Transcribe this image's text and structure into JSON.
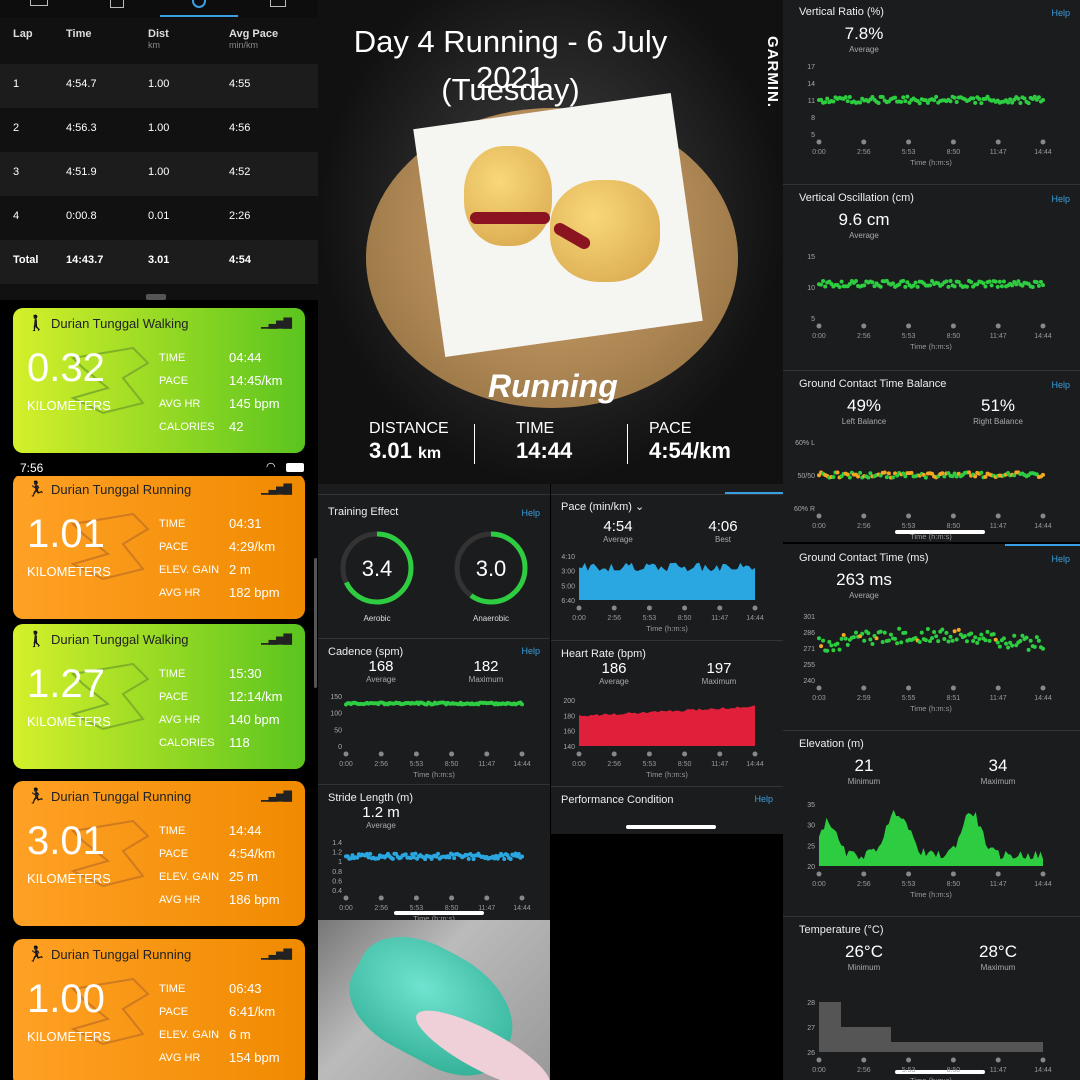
{
  "laps": {
    "headers": [
      {
        "label": "Lap",
        "unit": ""
      },
      {
        "label": "Time",
        "unit": ""
      },
      {
        "label": "Dist",
        "unit": "km"
      },
      {
        "label": "Avg Pace",
        "unit": "min/km"
      }
    ],
    "rows": [
      {
        "lap": "1",
        "time": "4:54.7",
        "dist": "1.00",
        "pace": "4:55"
      },
      {
        "lap": "2",
        "time": "4:56.3",
        "dist": "1.00",
        "pace": "4:56"
      },
      {
        "lap": "3",
        "time": "4:51.9",
        "dist": "1.00",
        "pace": "4:52"
      },
      {
        "lap": "4",
        "time": "0:00.8",
        "dist": "0.01",
        "pace": "2:26"
      }
    ],
    "total": {
      "lap": "Total",
      "time": "14:43.7",
      "dist": "3.01",
      "pace": "4:54"
    }
  },
  "status_time": "7:56",
  "cards": [
    {
      "kind": "walk",
      "title": "Durian Tunggal Walking",
      "distance": "0.32",
      "unit": "KILOMETERS",
      "stats": [
        [
          "TIME",
          "04:44"
        ],
        [
          "PACE",
          "14:45/km"
        ],
        [
          "AVG HR",
          "145 bpm"
        ],
        [
          "CALORIES",
          "42"
        ]
      ]
    },
    {
      "kind": "run",
      "title": "Durian Tunggal Running",
      "distance": "1.01",
      "unit": "KILOMETERS",
      "stats": [
        [
          "TIME",
          "04:31"
        ],
        [
          "PACE",
          "4:29/km"
        ],
        [
          "ELEV. GAIN",
          "2 m"
        ],
        [
          "AVG HR",
          "182 bpm"
        ]
      ]
    },
    {
      "kind": "walk",
      "title": "Durian Tunggal Walking",
      "distance": "1.27",
      "unit": "KILOMETERS",
      "stats": [
        [
          "TIME",
          "15:30"
        ],
        [
          "PACE",
          "12:14/km"
        ],
        [
          "AVG HR",
          "140 bpm"
        ],
        [
          "CALORIES",
          "118"
        ]
      ]
    },
    {
      "kind": "run",
      "title": "Durian Tunggal Running",
      "distance": "3.01",
      "unit": "KILOMETERS",
      "stats": [
        [
          "TIME",
          "14:44"
        ],
        [
          "PACE",
          "4:54/km"
        ],
        [
          "ELEV. GAIN",
          "25 m"
        ],
        [
          "AVG HR",
          "186 bpm"
        ]
      ]
    },
    {
      "kind": "run",
      "title": "Durian Tunggal Running",
      "distance": "1.00",
      "unit": "KILOMETERS",
      "stats": [
        [
          "TIME",
          "06:43"
        ],
        [
          "PACE",
          "6:41/km"
        ],
        [
          "ELEV. GAIN",
          "6 m"
        ],
        [
          "AVG HR",
          "154 bpm"
        ]
      ]
    }
  ],
  "photo": {
    "title_line1": "Day 4 Running - 6 July 2021",
    "title_line2": "(Tuesday)",
    "brand": "GARMIN.",
    "activity": "Running",
    "stats": [
      {
        "label": "DISTANCE",
        "value": "3.01",
        "unit": "km"
      },
      {
        "label": "TIME",
        "value": "14:44",
        "unit": ""
      },
      {
        "label": "PACE",
        "value": "4:54/km",
        "unit": ""
      }
    ]
  },
  "help": "Help",
  "x_time_label": "Time (h:m:s)",
  "x_ticks": [
    "0:00",
    "2:56",
    "5:53",
    "8:50",
    "11:47",
    "14:44"
  ],
  "training": {
    "title": "Training Effect",
    "aerobic": "3.4",
    "aerobic_label": "Aerobic",
    "anaerobic": "3.0",
    "anaerobic_label": "Anaerobic"
  },
  "cadence": {
    "title": "Cadence (spm)",
    "avg": "168",
    "avg_label": "Average",
    "max": "182",
    "max_label": "Maximum",
    "yticks": [
      "150",
      "100",
      "50",
      "0"
    ]
  },
  "stride": {
    "title": "Stride Length (m)",
    "avg": "1.2 m",
    "avg_label": "Average",
    "yticks": [
      "1.4",
      "1.2",
      "1",
      "0.8",
      "0.6",
      "0.4"
    ]
  },
  "pace": {
    "title": "Pace (min/km)",
    "avg": "4:54",
    "avg_label": "Average",
    "best": "4:06",
    "best_label": "Best",
    "yticks": [
      "4:10",
      "3:00",
      "5:00",
      "6:40"
    ]
  },
  "heart": {
    "title": "Heart Rate (bpm)",
    "avg": "186",
    "avg_label": "Average",
    "max": "197",
    "max_label": "Maximum",
    "yticks": [
      "200",
      "180",
      "160",
      "140"
    ]
  },
  "perf": {
    "title": "Performance Condition"
  },
  "vratio": {
    "title": "Vertical Ratio (%)",
    "avg": "7.8%",
    "avg_label": "Average",
    "yticks": [
      "17",
      "14",
      "11",
      "8",
      "5"
    ]
  },
  "vosc": {
    "title": "Vertical Oscillation (cm)",
    "avg": "9.6 cm",
    "avg_label": "Average",
    "yticks": [
      "15",
      "10",
      "5"
    ]
  },
  "gctb": {
    "title": "Ground Contact Time Balance",
    "left": "49%",
    "left_label": "Left Balance",
    "right": "51%",
    "right_label": "Right Balance",
    "yticks": [
      "60% L",
      "50/50",
      "60% R"
    ]
  },
  "gct": {
    "title": "Ground Contact Time (ms)",
    "avg": "263 ms",
    "avg_label": "Average",
    "yticks": [
      "301",
      "286",
      "271",
      "255",
      "240"
    ],
    "xticks": [
      "0:03",
      "2:59",
      "5:55",
      "8:51",
      "11:47",
      "14:44"
    ]
  },
  "elev": {
    "title": "Elevation (m)",
    "min": "21",
    "min_label": "Minimum",
    "max": "34",
    "max_label": "Maximum",
    "yticks": [
      "35",
      "30",
      "25",
      "20"
    ]
  },
  "temp": {
    "title": "Temperature (°C)",
    "min": "26°C",
    "min_label": "Minimum",
    "max": "28°C",
    "max_label": "Maximum",
    "yticks": [
      "28",
      "27",
      "26"
    ]
  },
  "colors": {
    "green": "#2ecc40",
    "blue": "#2aa7e0",
    "red": "#e0203a",
    "orange": "#f5a623",
    "accent": "#3a9fe0"
  }
}
